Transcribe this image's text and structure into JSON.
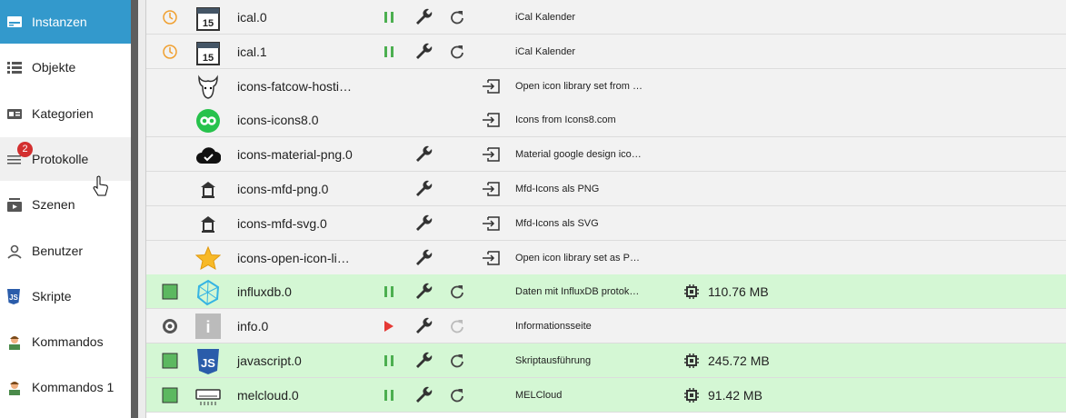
{
  "sidebar": {
    "items": [
      {
        "label": "Instanzen"
      },
      {
        "label": "Objekte"
      },
      {
        "label": "Kategorien"
      },
      {
        "label": "Protokolle",
        "badge": "2"
      },
      {
        "label": "Szenen"
      },
      {
        "label": "Benutzer"
      },
      {
        "label": "Skripte"
      },
      {
        "label": "Kommandos"
      },
      {
        "label": "Kommandos 1"
      }
    ]
  },
  "instances": {
    "rows": [
      {
        "name": "ical.0",
        "description": "iCal Kalender"
      },
      {
        "name": "ical.1",
        "description": "iCal Kalender"
      },
      {
        "name": "icons-fatcow-hosti…",
        "description": "Open icon library set from …"
      },
      {
        "name": "icons-icons8.0",
        "description": "Icons from Icons8.com"
      },
      {
        "name": "icons-material-png.0",
        "description": "Material google design ico…"
      },
      {
        "name": "icons-mfd-png.0",
        "description": "Mfd-Icons als PNG"
      },
      {
        "name": "icons-mfd-svg.0",
        "description": "Mfd-Icons als SVG"
      },
      {
        "name": "icons-open-icon-li…",
        "description": "Open icon library set as P…"
      },
      {
        "name": "influxdb.0",
        "description": "Daten mit InfluxDB protok…",
        "memory": "110.76 MB"
      },
      {
        "name": "info.0",
        "description": "Informationsseite"
      },
      {
        "name": "javascript.0",
        "description": "Skriptausführung",
        "memory": "245.72 MB"
      },
      {
        "name": "melcloud.0",
        "description": "MELCloud",
        "memory": "91.42 MB"
      }
    ]
  }
}
